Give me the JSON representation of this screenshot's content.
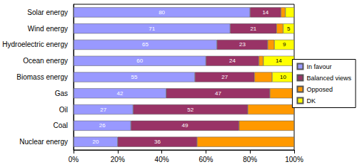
{
  "chart_data": {
    "type": "bar",
    "orientation": "horizontal",
    "stacked": true,
    "data_labels": true,
    "grid": false,
    "legend": "right",
    "categories": [
      "Solar energy",
      "Wind energy",
      "Hydroelectric energy",
      "Ocean energy",
      "Biomass energy",
      "Gas",
      "Oil",
      "Coal",
      "Nuclear energy"
    ],
    "series": [
      {
        "name": "In favour",
        "color": "#9999ff",
        "values": [
          80,
          71,
          65,
          60,
          55,
          42,
          27,
          26,
          20
        ],
        "value_labels": [
          "80",
          "71",
          "65",
          "60",
          "55",
          "42",
          "27",
          "26",
          "20"
        ]
      },
      {
        "name": "Balanced views",
        "color": "#993366",
        "values": [
          14,
          21,
          23,
          24,
          27,
          47,
          52,
          49,
          36
        ],
        "value_labels": [
          "14",
          "21",
          "23",
          "24",
          "27",
          "47",
          "52",
          "49",
          "36"
        ]
      },
      {
        "name": "Opposed",
        "color": "#ff9900",
        "values": [
          2,
          3,
          3,
          2,
          8,
          11,
          21,
          25,
          44
        ],
        "value_labels": [
          null,
          null,
          null,
          null,
          null,
          null,
          null,
          null,
          null
        ]
      },
      {
        "name": "DK",
        "color": "#ffff00",
        "values": [
          4,
          5,
          9,
          14,
          10,
          null,
          null,
          null,
          null
        ],
        "value_labels": [
          null,
          "5",
          "9",
          "14",
          "10",
          null,
          null,
          null,
          null
        ]
      }
    ],
    "xlim": [
      0,
      100
    ],
    "xticks": [
      {
        "value": 0,
        "label": "0%"
      },
      {
        "value": 20,
        "label": "20%"
      },
      {
        "value": 40,
        "label": "40%"
      },
      {
        "value": 60,
        "label": "60%"
      },
      {
        "value": 80,
        "label": "80%"
      },
      {
        "value": 100,
        "label": "100%"
      }
    ]
  }
}
